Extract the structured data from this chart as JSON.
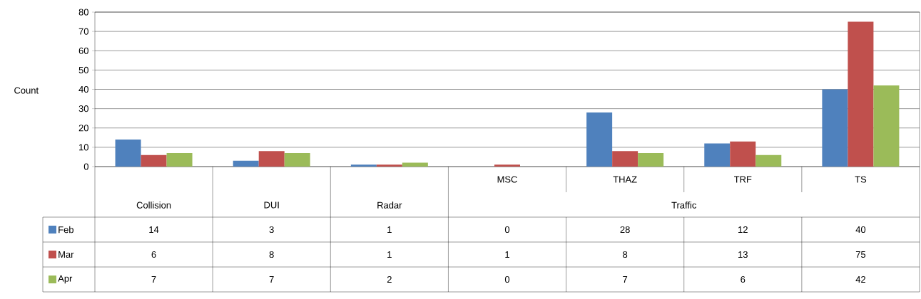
{
  "chart_data": {
    "type": "bar",
    "ylabel": "Count",
    "categories": [
      "Collision",
      "DUI",
      "Radar",
      "MSC",
      "THAZ",
      "TRF",
      "TS"
    ],
    "series": [
      {
        "name": "Feb",
        "color": "#4f81bd",
        "values": [
          14,
          3,
          1,
          0,
          28,
          12,
          40
        ]
      },
      {
        "name": "Mar",
        "color": "#c0504d",
        "values": [
          6,
          8,
          1,
          1,
          8,
          13,
          75
        ]
      },
      {
        "name": "Apr",
        "color": "#9bbb59",
        "values": [
          7,
          7,
          2,
          0,
          7,
          6,
          42
        ]
      }
    ],
    "ylim": [
      0,
      80
    ],
    "yticks": [
      0,
      10,
      20,
      30,
      40,
      50,
      60,
      70,
      80
    ],
    "grid": "y",
    "data_labels": true,
    "legend": "bottom left",
    "annotations": [
      "Traffic"
    ]
  }
}
